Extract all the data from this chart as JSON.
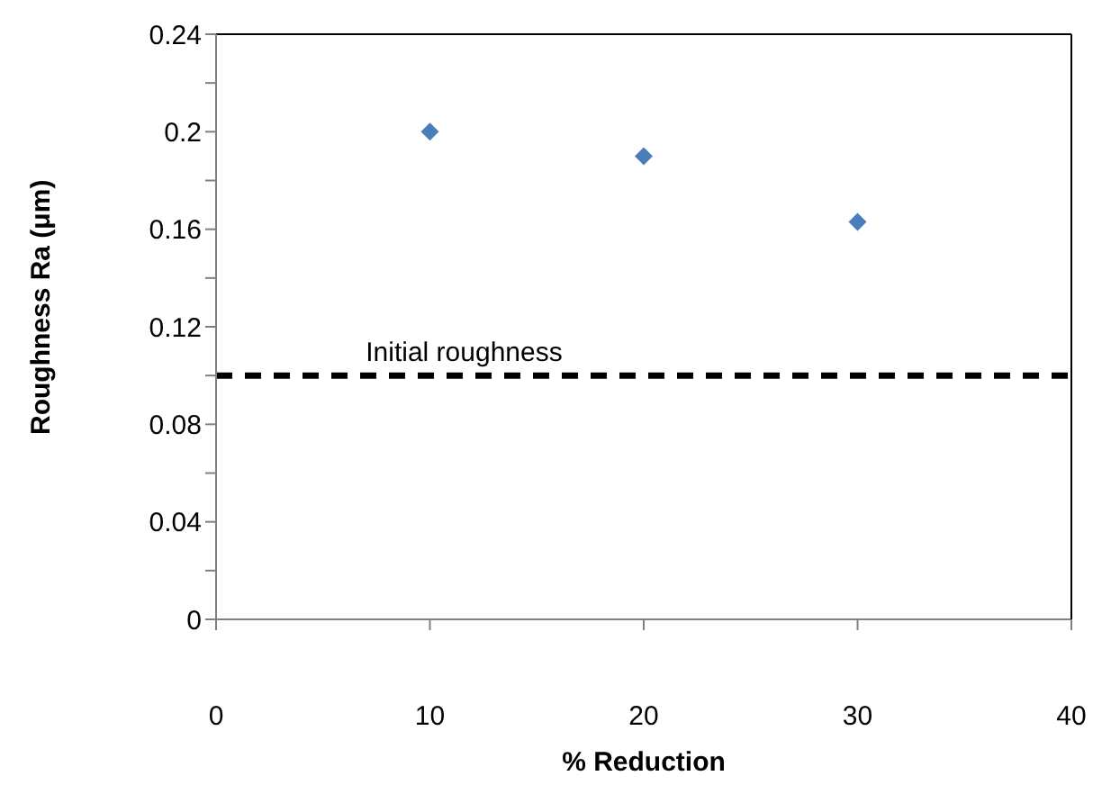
{
  "chart_data": {
    "type": "scatter",
    "xlabel": "% Reduction",
    "ylabel": "Roughness Ra (μm)",
    "x": [
      10,
      20,
      30
    ],
    "series": [
      {
        "color": "#4a7ebb",
        "values": [
          0.2,
          0.19,
          0.163
        ]
      }
    ],
    "marker": "diamond",
    "xlim": [
      0,
      40
    ],
    "xticks": [
      0,
      10,
      20,
      30,
      40
    ],
    "ylim": [
      0,
      0.24
    ],
    "yticks": [
      0,
      {
        "value": 0.02,
        "label": null
      },
      0.04,
      {
        "value": 0.06,
        "label": null
      },
      0.08,
      {
        "value": 0.1,
        "label": null
      },
      0.12,
      {
        "value": 0.14,
        "label": null
      },
      0.16,
      {
        "value": 0.18,
        "label": null
      },
      0.2,
      {
        "value": 0.22,
        "label": null
      },
      0.24
    ],
    "ref_lines": [
      {
        "axis": "y",
        "value": 0.1,
        "label": "Initial roughness",
        "color": "#000000",
        "line_style": "dashed"
      }
    ]
  }
}
